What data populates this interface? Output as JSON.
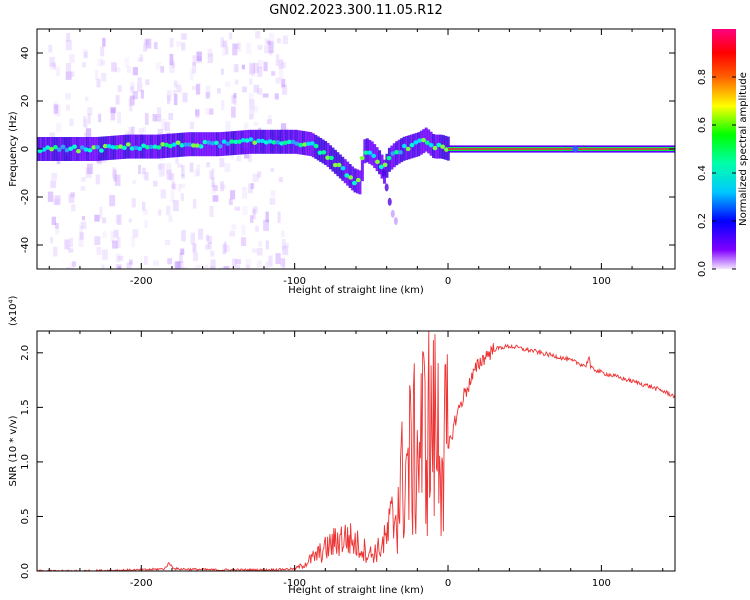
{
  "title": "GN02.2023.300.11.05.R12",
  "chart_data": [
    {
      "type": "heatmap",
      "xlabel": "Height of straight line (km)",
      "ylabel": "Frequency (Hz)",
      "xlim": [
        -268,
        148
      ],
      "ylim": [
        -50,
        50
      ],
      "xticks": [
        -200,
        -100,
        0,
        100
      ],
      "xtick_labels": [
        "-200",
        "-100",
        "0",
        "100"
      ],
      "yticks": [
        -40,
        -20,
        0,
        20,
        40
      ],
      "ytick_labels": [
        "-40",
        "-20",
        "0",
        "20",
        "40"
      ],
      "grid": false,
      "colorbar": {
        "label": "Normalized spectral amplitude",
        "range": [
          0,
          1
        ],
        "ticks": [
          0.0,
          0.2,
          0.4,
          0.6,
          0.8
        ],
        "tick_labels": [
          "0.0",
          "0.2",
          "0.4",
          "0.6",
          "0.8"
        ],
        "colors": [
          "#f0e0ff",
          "#7a00ff",
          "#0000ff",
          "#00ffff",
          "#00ff00",
          "#ffff00",
          "#ff8000",
          "#ff0000",
          "#ff0080"
        ]
      },
      "ridge": {
        "x": [
          -268,
          -250,
          -230,
          -210,
          -190,
          -170,
          -150,
          -130,
          -110,
          -100,
          -90,
          -80,
          -70,
          -62,
          -58,
          -55,
          -50,
          -45,
          -42,
          -40,
          -35,
          -30,
          -25,
          -20,
          -15,
          -10,
          -5,
          0,
          20,
          40,
          60,
          80,
          100,
          120,
          148
        ],
        "y": [
          0,
          0,
          0,
          1,
          1,
          2,
          2,
          3,
          3,
          3,
          2,
          -2,
          -8,
          -13,
          -14,
          0,
          -2,
          -6,
          -10,
          -5,
          -2,
          0,
          1,
          2,
          4,
          1,
          1,
          0,
          0,
          0,
          0,
          0,
          0,
          0,
          0
        ]
      },
      "branch": {
        "x": [
          -42,
          -40,
          -38,
          -36,
          -34
        ],
        "y": [
          -10,
          -16,
          -22,
          -27,
          -30
        ]
      }
    },
    {
      "type": "line",
      "xlabel": "Height of straight line (km)",
      "ylabel": "SNR (10 * v/v)",
      "y_multiplier": "(x10⁴)",
      "xlim": [
        -268,
        148
      ],
      "ylim": [
        0,
        2.2
      ],
      "xticks": [
        -200,
        -100,
        0,
        100
      ],
      "xtick_labels": [
        "-200",
        "-100",
        "0",
        "100"
      ],
      "yticks": [
        0.0,
        0.5,
        1.0,
        1.5,
        2.0
      ],
      "ytick_labels": [
        "0.0",
        "0.5",
        "1.0",
        "1.5",
        "2.0"
      ],
      "grid": false,
      "series": [
        {
          "color": "#ee3333",
          "x": [
            -268,
            -240,
            -200,
            -185,
            -182,
            -178,
            -150,
            -120,
            -100,
            -95,
            -90,
            -85,
            -80,
            -75,
            -70,
            -65,
            -60,
            -55,
            -50,
            -45,
            -40,
            -35,
            -30,
            -25,
            -20,
            -15,
            -10,
            -5,
            0,
            5,
            10,
            15,
            20,
            25,
            30,
            35,
            40,
            45,
            50,
            55,
            60,
            70,
            80,
            90,
            92,
            93,
            95,
            100,
            110,
            120,
            130,
            140,
            148
          ],
          "y": [
            0.0,
            0.0,
            0.01,
            0.02,
            0.07,
            0.02,
            0.01,
            0.01,
            0.02,
            0.05,
            0.1,
            0.15,
            0.2,
            0.25,
            0.3,
            0.3,
            0.25,
            0.2,
            0.15,
            0.2,
            0.3,
            0.5,
            0.8,
            1.0,
            1.1,
            1.3,
            1.3,
            1.2,
            1.1,
            1.4,
            1.6,
            1.75,
            1.9,
            1.98,
            2.03,
            2.05,
            2.06,
            2.05,
            2.03,
            2.02,
            2.0,
            1.97,
            1.93,
            1.88,
            1.97,
            1.86,
            1.85,
            1.82,
            1.78,
            1.74,
            1.7,
            1.65,
            1.6
          ]
        }
      ]
    }
  ]
}
